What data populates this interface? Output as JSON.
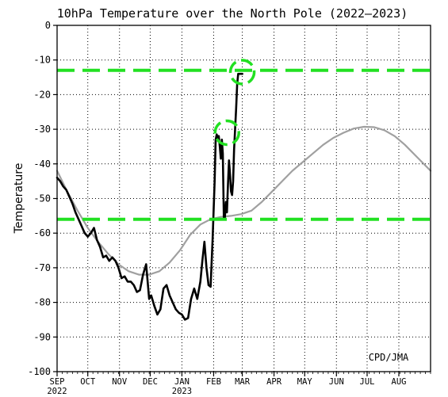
{
  "chart_data": {
    "type": "line",
    "title": "10hPa Temperature over the North Pole (2022–2023)",
    "ylabel": "Temperature",
    "xlabel": "",
    "credit": "CPD/JMA",
    "ylim": [
      -100,
      0
    ],
    "xlim": [
      0,
      365
    ],
    "yticks": [
      0,
      -10,
      -20,
      -30,
      -40,
      -50,
      -60,
      -70,
      -80,
      -90,
      -100
    ],
    "xticks": [
      {
        "label": "SEP",
        "sub": "2022",
        "day": 0
      },
      {
        "label": "OCT",
        "sub": "",
        "day": 30
      },
      {
        "label": "NOV",
        "sub": "",
        "day": 61
      },
      {
        "label": "DEC",
        "sub": "",
        "day": 91
      },
      {
        "label": "JAN",
        "sub": "2023",
        "day": 122
      },
      {
        "label": "FEB",
        "sub": "",
        "day": 153
      },
      {
        "label": "MAR",
        "sub": "",
        "day": 181
      },
      {
        "label": "APR",
        "sub": "",
        "day": 212
      },
      {
        "label": "MAY",
        "sub": "",
        "day": 242
      },
      {
        "label": "JUN",
        "sub": "",
        "day": 273
      },
      {
        "label": "JUL",
        "sub": "",
        "day": 303
      },
      {
        "label": "AUG",
        "sub": "",
        "day": 334
      }
    ],
    "grid": true,
    "hlines": [
      {
        "y": -13,
        "color": "#22e022",
        "style": "dashed"
      },
      {
        "y": -56,
        "color": "#22e022",
        "style": "dashed"
      }
    ],
    "circles": [
      {
        "x": 166,
        "y": -31,
        "color": "#22e022",
        "style": "dashed"
      },
      {
        "x": 181,
        "y": -13.5,
        "color": "#22e022",
        "style": "dashed"
      }
    ],
    "series": [
      {
        "color": "#a0a0a0",
        "x": [
          0,
          10,
          20,
          30,
          40,
          50,
          60,
          70,
          80,
          90,
          100,
          110,
          120,
          130,
          140,
          150,
          160,
          170,
          180,
          190,
          200,
          210,
          220,
          230,
          240,
          250,
          260,
          270,
          280,
          290,
          300,
          310,
          320,
          330,
          340,
          350,
          365
        ],
        "y": [
          -42,
          -48,
          -53.5,
          -58.5,
          -62.5,
          -66,
          -69,
          -71,
          -72,
          -72,
          -71,
          -68.5,
          -65,
          -60.5,
          -57.5,
          -56,
          -55.3,
          -55,
          -54.5,
          -53.5,
          -51,
          -48,
          -45,
          -42,
          -39.5,
          -37,
          -34.5,
          -32.5,
          -31,
          -29.8,
          -29.3,
          -29.4,
          -30.3,
          -32,
          -34.5,
          -37.5,
          -42
        ]
      },
      {
        "color": "#000000",
        "x": [
          0,
          3,
          6,
          9,
          12,
          15,
          18,
          21,
          24,
          27,
          30,
          33,
          36,
          39,
          42,
          45,
          48,
          51,
          54,
          57,
          60,
          63,
          66,
          69,
          72,
          75,
          78,
          81,
          84,
          87,
          90,
          92,
          95,
          98,
          101,
          104,
          107,
          110,
          113,
          116,
          119,
          122,
          125,
          128,
          131,
          134,
          137,
          140,
          142,
          144,
          146,
          148,
          150,
          152,
          154,
          155,
          156,
          157,
          158,
          159,
          160,
          161,
          162,
          163,
          164,
          165,
          166,
          167,
          168,
          169,
          170,
          171,
          172,
          173,
          174,
          175,
          176,
          177,
          178,
          179,
          180,
          181
        ],
        "y": [
          -44,
          -45,
          -46.5,
          -47.5,
          -49.5,
          -51.5,
          -54,
          -56,
          -58,
          -60,
          -61,
          -60,
          -58.5,
          -62,
          -64,
          -67,
          -66.5,
          -68,
          -67,
          -68,
          -70,
          -73,
          -72.5,
          -74,
          -74,
          -75,
          -77,
          -76.5,
          -72,
          -69,
          -79,
          -78,
          -81,
          -83.5,
          -82,
          -76,
          -75,
          -78,
          -80,
          -82,
          -83,
          -83.5,
          -85,
          -84.5,
          -79,
          -76,
          -79,
          -74,
          -68,
          -62.5,
          -70,
          -75,
          -75.5,
          -62,
          -45,
          -33,
          -31.5,
          -32.5,
          -32,
          -35,
          -38.5,
          -33,
          -37,
          -55.5,
          -55.5,
          -51,
          -54,
          -46,
          -39,
          -43,
          -48,
          -49,
          -45,
          -36,
          -30,
          -24,
          -17,
          -14,
          -14,
          -14,
          -14,
          -14
        ]
      }
    ]
  }
}
